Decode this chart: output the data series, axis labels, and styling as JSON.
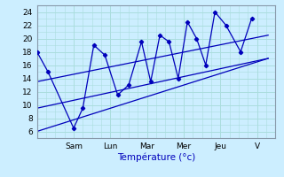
{
  "background_color": "#cceeff",
  "grid_color": "#aadddd",
  "line_color": "#0000bb",
  "xlabel": "Température (°c)",
  "ylim": [
    5,
    25
  ],
  "yticks": [
    6,
    8,
    10,
    12,
    14,
    16,
    18,
    20,
    22,
    24
  ],
  "xlim": [
    0,
    6.5
  ],
  "day_labels": [
    "Sam",
    "Lun",
    "Mar",
    "Mer",
    "Jeu",
    "V"
  ],
  "day_positions": [
    1.0,
    2.0,
    3.0,
    4.0,
    5.0,
    6.0
  ],
  "temp_x": [
    0.0,
    0.3,
    1.0,
    1.25,
    1.55,
    1.85,
    2.2,
    2.5,
    2.85,
    3.1,
    3.35,
    3.6,
    3.85,
    4.1,
    4.35,
    4.6,
    4.85,
    5.15,
    5.55,
    5.85
  ],
  "temp_y": [
    18,
    15,
    6.5,
    9.5,
    19,
    17.5,
    11.5,
    13.0,
    19.5,
    13.5,
    20.5,
    19.5,
    14.0,
    22.5,
    20.0,
    16.0,
    24.0,
    22.0,
    18.0,
    23.0
  ],
  "trend1_x": [
    0.0,
    6.3
  ],
  "trend1_y": [
    13.5,
    20.5
  ],
  "trend2_x": [
    0.0,
    6.3
  ],
  "trend2_y": [
    9.5,
    17.0
  ],
  "trend3_x": [
    0.0,
    6.3
  ],
  "trend3_y": [
    6.0,
    17.0
  ]
}
